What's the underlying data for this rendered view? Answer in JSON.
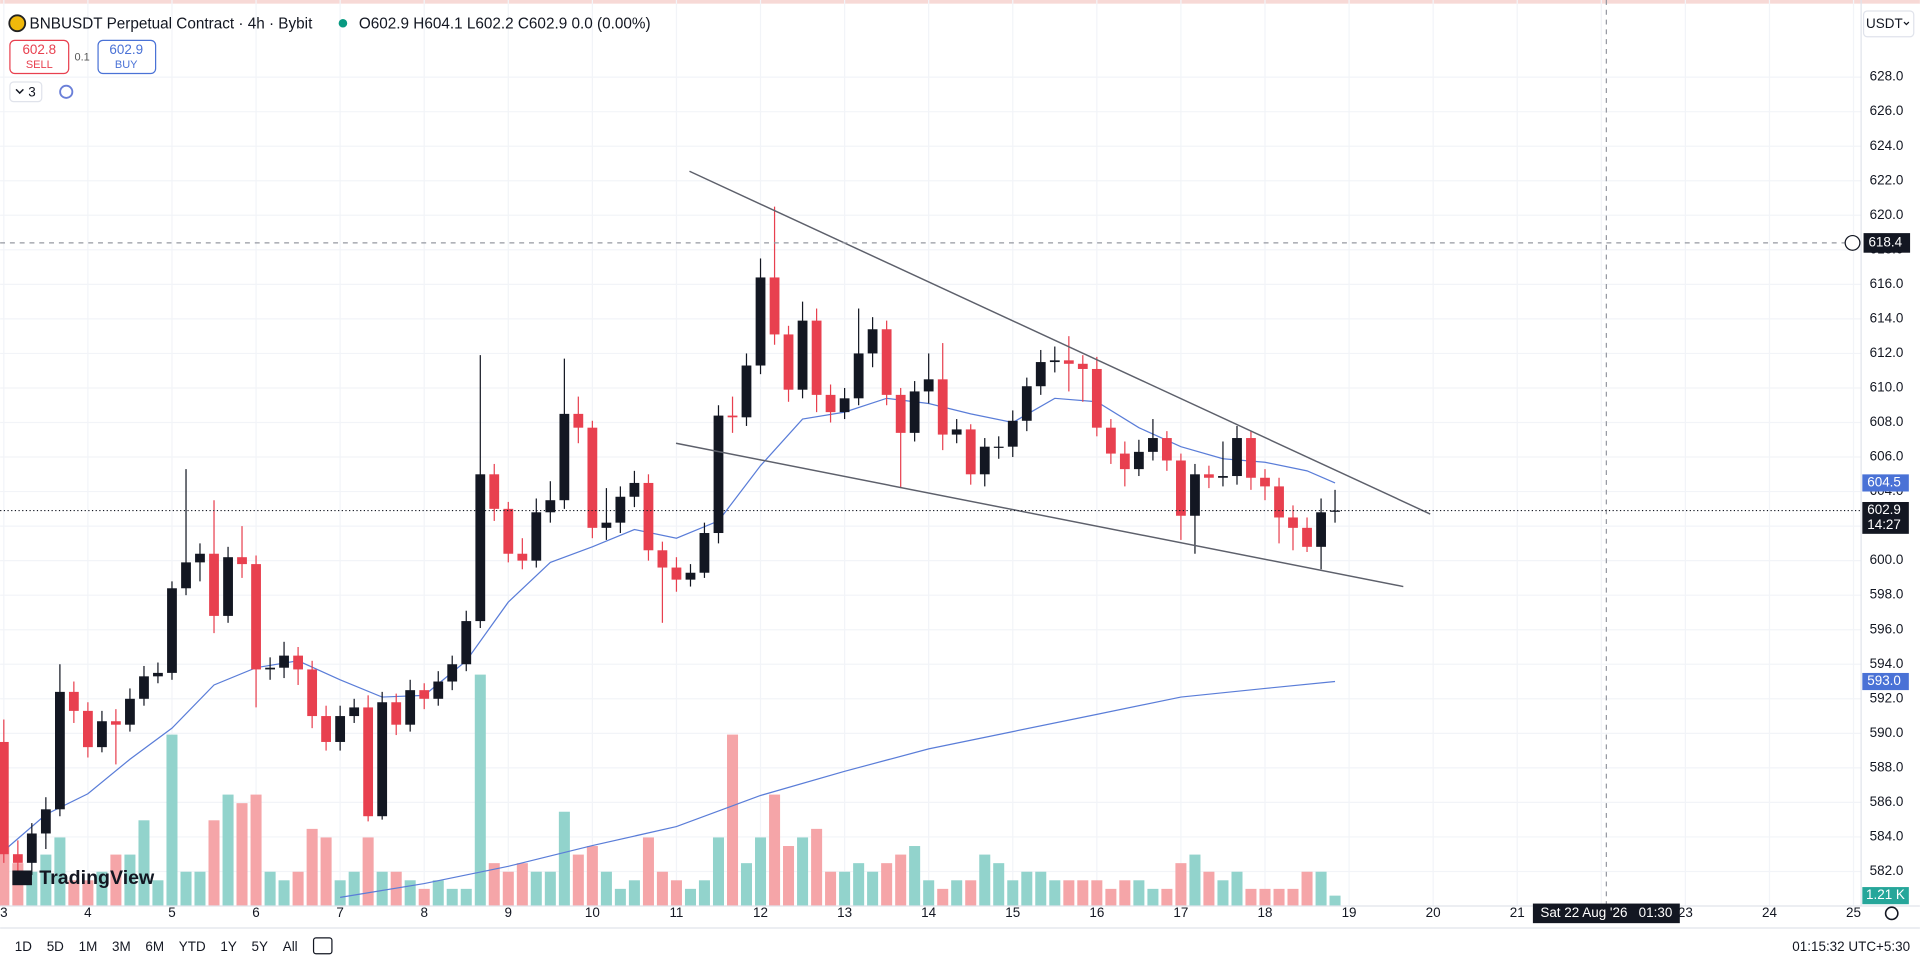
{
  "chart_data": {
    "type": "candlestick",
    "title": "BNBUSDT Perpetual Contract · 4h · Bybit",
    "ohlc_text": "O602.9 H604.1 L602.2 C602.9 0.0 (0.00%)",
    "currency": "USDT",
    "watermark": "TradingView",
    "up_color": "#131722",
    "down_color": "#e8404f",
    "volume_up_color": "#92d3cc",
    "volume_down_color": "#f5a5a8",
    "x": [
      3,
      3.167,
      3.333,
      3.5,
      3.667,
      3.833,
      4,
      4.167,
      4.333,
      4.5,
      4.667,
      4.833,
      5,
      5.167,
      5.333,
      5.5,
      5.667,
      5.833,
      6,
      6.167,
      6.333,
      6.5,
      6.667,
      6.833,
      7,
      7.167,
      7.333,
      7.5,
      7.667,
      7.833,
      8,
      8.167,
      8.333,
      8.5,
      8.667,
      8.833,
      9,
      9.167,
      9.333,
      9.5,
      9.667,
      9.833,
      10,
      10.167,
      10.333,
      10.5,
      10.667,
      10.833,
      11,
      11.167,
      11.333,
      11.5,
      11.667,
      11.833,
      12,
      12.167,
      12.333,
      12.5,
      12.667,
      12.833,
      13,
      13.167,
      13.333,
      13.5,
      13.667,
      13.833,
      14,
      14.167,
      14.333,
      14.5,
      14.667,
      14.833,
      15,
      15.167,
      15.333,
      15.5,
      15.667,
      15.833,
      16,
      16.167,
      16.333,
      16.5,
      16.667,
      16.833,
      17,
      17.167,
      17.333,
      17.5,
      17.667,
      17.833,
      18,
      18.167,
      18.333,
      18.5,
      18.667,
      18.833
    ],
    "open": [
      589.5,
      583.0,
      582.5,
      584.2,
      585.6,
      592.4,
      591.3,
      589.2,
      590.7,
      590.5,
      592.0,
      593.3,
      593.5,
      598.4,
      599.9,
      600.4,
      596.8,
      600.2,
      599.8,
      593.7,
      593.8,
      594.5,
      593.7,
      591.0,
      589.5,
      591.0,
      591.5,
      585.2,
      591.8,
      590.5,
      592.5,
      592.0,
      593.0,
      594.0,
      596.5,
      605.0,
      603.0,
      600.4,
      600.0,
      602.8,
      603.5,
      608.5,
      607.7,
      601.9,
      602.2,
      603.7,
      604.5,
      600.6,
      599.6,
      598.9,
      599.3,
      601.6,
      608.4,
      608.3,
      611.3,
      616.4,
      613.1,
      609.9,
      613.9,
      609.6,
      608.6,
      609.4,
      612.0,
      613.4,
      609.6,
      607.4,
      609.8,
      610.5,
      607.3,
      607.6,
      605.0,
      606.6,
      606.6,
      608.1,
      610.1,
      611.5,
      611.6,
      611.4,
      611.1,
      607.7,
      606.2,
      605.3,
      606.3,
      607.1,
      605.8,
      602.6,
      605.0,
      604.8,
      604.9,
      607.1,
      604.8,
      604.3,
      602.5,
      601.9,
      600.8,
      602.9
    ],
    "high": [
      590.8,
      583.8,
      584.8,
      586.3,
      594.0,
      593.0,
      591.8,
      591.3,
      591.4,
      592.6,
      593.9,
      594.1,
      598.8,
      605.3,
      601.0,
      603.5,
      600.8,
      602.0,
      600.3,
      594.4,
      595.3,
      595.0,
      594.2,
      591.6,
      591.6,
      592.0,
      592.2,
      592.4,
      592.3,
      593.1,
      592.9,
      593.6,
      594.5,
      597.1,
      611.9,
      605.6,
      603.4,
      601.3,
      603.6,
      604.6,
      611.7,
      609.5,
      608.1,
      604.2,
      604.3,
      605.2,
      605.0,
      601.1,
      600.2,
      599.8,
      602.2,
      609.0,
      609.5,
      612.0,
      617.5,
      620.5,
      613.6,
      615.0,
      614.6,
      610.2,
      610.0,
      614.6,
      614.1,
      613.9,
      610.0,
      610.4,
      612.0,
      612.6,
      608.2,
      607.9,
      607.1,
      607.2,
      608.7,
      610.6,
      612.2,
      612.4,
      613.0,
      611.9,
      611.8,
      608.2,
      606.9,
      607.0,
      608.2,
      607.5,
      606.2,
      605.6,
      605.5,
      606.9,
      607.8,
      607.5,
      605.3,
      604.8,
      603.2,
      602.5,
      603.6,
      604.1
    ],
    "low": [
      582.5,
      582.0,
      581.8,
      583.3,
      585.2,
      590.6,
      588.6,
      588.9,
      588.2,
      590.1,
      591.6,
      592.9,
      593.1,
      598.0,
      598.8,
      595.8,
      596.4,
      599.0,
      591.5,
      593.1,
      593.2,
      592.8,
      590.3,
      589.0,
      589.0,
      590.6,
      584.9,
      585.0,
      589.9,
      590.1,
      591.4,
      591.6,
      592.5,
      593.6,
      596.1,
      602.3,
      599.9,
      599.5,
      599.6,
      602.2,
      603.0,
      606.8,
      601.3,
      601.2,
      601.6,
      603.1,
      600.0,
      596.4,
      598.2,
      598.5,
      599.0,
      601.0,
      607.4,
      607.8,
      610.8,
      612.5,
      609.2,
      609.4,
      608.6,
      608.0,
      608.2,
      609.0,
      611.2,
      609.0,
      604.2,
      606.9,
      609.1,
      606.4,
      606.8,
      604.4,
      604.3,
      605.9,
      606.0,
      607.5,
      609.6,
      610.9,
      609.8,
      609.2,
      607.2,
      605.6,
      604.3,
      604.9,
      605.8,
      605.2,
      601.2,
      600.4,
      604.2,
      604.3,
      604.4,
      604.1,
      603.5,
      601.0,
      600.6,
      600.5,
      599.5,
      602.2
    ],
    "close": [
      583.0,
      582.5,
      584.2,
      585.6,
      592.4,
      591.3,
      589.2,
      590.7,
      590.5,
      592.0,
      593.3,
      593.5,
      598.4,
      599.9,
      600.4,
      596.8,
      600.2,
      599.8,
      593.7,
      593.8,
      594.5,
      593.7,
      591.0,
      589.5,
      591.0,
      591.5,
      585.2,
      591.8,
      590.5,
      592.5,
      592.0,
      593.0,
      594.0,
      596.5,
      605.0,
      603.0,
      600.4,
      600.0,
      602.8,
      603.5,
      608.5,
      607.7,
      601.9,
      602.2,
      603.7,
      604.5,
      600.6,
      599.6,
      598.9,
      599.3,
      601.6,
      608.4,
      608.3,
      611.3,
      616.4,
      613.1,
      609.9,
      613.9,
      609.6,
      608.6,
      609.4,
      612.0,
      613.4,
      609.6,
      607.4,
      609.8,
      610.5,
      607.3,
      607.6,
      605.0,
      606.6,
      606.6,
      608.1,
      610.1,
      611.5,
      611.6,
      611.4,
      611.1,
      607.7,
      606.2,
      605.3,
      606.3,
      607.1,
      605.8,
      602.6,
      605.0,
      604.8,
      604.9,
      607.1,
      604.8,
      604.3,
      602.5,
      601.9,
      600.8,
      602.8,
      602.9
    ],
    "volume": [
      7,
      5,
      4,
      6,
      8,
      3,
      3,
      4,
      6,
      6,
      10,
      3,
      20,
      4,
      4,
      10,
      13,
      12,
      13,
      4,
      3,
      4,
      9,
      8,
      3,
      4,
      8,
      4,
      4,
      3,
      2,
      3,
      2,
      2,
      27,
      5,
      4,
      5,
      4,
      4,
      11,
      6,
      7,
      4,
      2,
      3,
      8,
      4,
      3,
      2,
      3,
      8,
      20,
      5,
      8,
      13,
      7,
      8,
      9,
      4,
      4,
      5,
      4,
      5,
      6,
      7,
      3,
      2,
      3,
      3,
      6,
      5,
      3,
      4,
      4,
      3,
      3,
      3,
      3,
      2,
      3,
      3,
      2,
      2,
      5,
      6,
      4,
      3,
      4,
      2,
      2,
      2,
      2,
      4,
      4,
      1.21
    ],
    "volume_label": "1.21 K",
    "vlim": [
      0,
      40
    ],
    "lines": [
      {
        "color": "#5a7dd8",
        "x": [
          3,
          3.5,
          4,
          4.5,
          5,
          5.5,
          6,
          6.5,
          7,
          7.5,
          8,
          8.5,
          9,
          9.5,
          10,
          10.5,
          11,
          11.5,
          12,
          12.5,
          13,
          13.5,
          14,
          14.5,
          15,
          15.5,
          16,
          16.5,
          17,
          17.5,
          18,
          18.5,
          18.833
        ],
        "values": [
          583.2,
          585.3,
          586.5,
          588.5,
          590.3,
          592.8,
          593.8,
          594.2,
          593.1,
          592.1,
          592.2,
          594.2,
          597.6,
          599.9,
          600.8,
          601.8,
          601.3,
          602.3,
          605.5,
          608.2,
          608.6,
          609.4,
          609.1,
          608.5,
          608.0,
          609.4,
          609.2,
          607.7,
          606.6,
          605.9,
          605.7,
          605.2,
          604.5
        ]
      },
      {
        "color": "#5a7dd8",
        "x": [
          7,
          8,
          9,
          10,
          11,
          12,
          13,
          14,
          15,
          16,
          17,
          18,
          18.833
        ],
        "values": [
          580.5,
          581.3,
          582.3,
          583.5,
          584.6,
          586.4,
          587.8,
          589.1,
          590.1,
          591.1,
          592.1,
          592.6,
          593.0
        ]
      }
    ],
    "trendlines": [
      {
        "color": "#5d606b",
        "x": [
          11.155,
          19.965
        ],
        "values": [
          622.55,
          602.7
        ]
      },
      {
        "color": "#5d606b",
        "x": [
          10.995,
          19.645
        ],
        "values": [
          606.8,
          598.5
        ]
      }
    ],
    "price_labels": [
      {
        "value": 604.5,
        "label": "604.5",
        "color": "#4a72d6"
      },
      {
        "value": 593.0,
        "label": "593.0",
        "color": "#4a72d6"
      }
    ],
    "last_price": {
      "value": 602.9,
      "label": "602.9",
      "countdown": "14:27"
    },
    "crosshair": {
      "x": 22.06,
      "y": 618.4,
      "y_label": "618.4",
      "x_label": "Sat 22 Aug '26   01:30"
    },
    "xlim": [
      2.956,
      25.09
    ],
    "xticks": [
      3,
      4,
      5,
      6,
      7,
      8,
      9,
      10,
      11,
      12,
      13,
      14,
      15,
      16,
      17,
      18,
      19,
      20,
      21,
      22,
      23,
      24,
      25
    ],
    "ylim": [
      580,
      631.9
    ],
    "yticks": [
      {
        "value": 582,
        "label": "582.0"
      },
      {
        "value": 584,
        "label": "584.0"
      },
      {
        "value": 586,
        "label": "586.0"
      },
      {
        "value": 588,
        "label": "588.0"
      },
      {
        "value": 590,
        "label": "590.0"
      },
      {
        "value": 592,
        "label": "592.0"
      },
      {
        "value": 594,
        "label": "594.0"
      },
      {
        "value": 596,
        "label": "596.0"
      },
      {
        "value": 598,
        "label": "598.0"
      },
      {
        "value": 600,
        "label": "600.0"
      },
      {
        "value": 602,
        "label": "602.0"
      },
      {
        "value": 604,
        "label": "604.0"
      },
      {
        "value": 606,
        "label": "606.0"
      },
      {
        "value": 608,
        "label": "608.0"
      },
      {
        "value": 610,
        "label": "610.0"
      },
      {
        "value": 612,
        "label": "612.0"
      },
      {
        "value": 614,
        "label": "614.0"
      },
      {
        "value": 616,
        "label": "616.0"
      },
      {
        "value": 618,
        "label": "618.0"
      },
      {
        "value": 620,
        "label": "620.0"
      },
      {
        "value": 622,
        "label": "622.0"
      },
      {
        "value": 624,
        "label": "624.0"
      },
      {
        "value": 626,
        "label": "626.0"
      },
      {
        "value": 628,
        "label": "628.0"
      }
    ],
    "grid": true
  },
  "trade": {
    "sell_price": "602.8",
    "sell": "SELL",
    "spread": "0.1",
    "buy_price": "602.9",
    "buy": "BUY",
    "indicators": "3"
  },
  "toolbar": {
    "ranges": [
      "1D",
      "5D",
      "1M",
      "3M",
      "6M",
      "YTD",
      "1Y",
      "5Y",
      "All"
    ],
    "clock": "01:15:32 UTC+5:30"
  }
}
